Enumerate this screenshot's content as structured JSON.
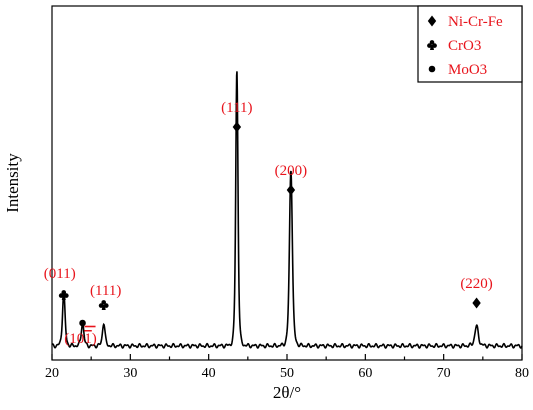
{
  "chart_data": {
    "type": "line",
    "xlabel": "2θ/°",
    "ylabel": "Intensity",
    "xlim": [
      20,
      80
    ],
    "xticks": [
      20,
      30,
      40,
      50,
      60,
      70,
      80
    ],
    "xtick_labels": [
      "20",
      "30",
      "40",
      "50",
      "60",
      "70",
      "80"
    ],
    "ylim": [
      0,
      100
    ],
    "grid": false,
    "legend_position": "top-right",
    "series": [
      {
        "color": "#000000",
        "baseline": 4,
        "peaks": [
          {
            "x": 21.5,
            "y": 15,
            "w": 0.25
          },
          {
            "x": 23.9,
            "y": 6.5,
            "w": 0.25
          },
          {
            "x": 26.6,
            "y": 6.5,
            "w": 0.25
          },
          {
            "x": 43.6,
            "y": 78,
            "w": 0.22
          },
          {
            "x": 50.5,
            "y": 50,
            "w": 0.28
          },
          {
            "x": 74.2,
            "y": 5.5,
            "w": 0.35
          }
        ]
      }
    ],
    "legend": [
      {
        "marker": "diamond",
        "label": "Ni-Cr-Fe"
      },
      {
        "marker": "club",
        "label": "CrO3"
      },
      {
        "marker": "circle",
        "label": "MoO3"
      }
    ],
    "annotations": [
      {
        "x": 43.6,
        "marker": "diamond",
        "label": "(111)"
      },
      {
        "x": 50.5,
        "marker": "diamond",
        "label": "(200)"
      },
      {
        "x": 74.2,
        "marker": "diamond",
        "label": "(220)"
      },
      {
        "x": 21.5,
        "marker": "club",
        "label": "(011)"
      },
      {
        "x": 26.6,
        "marker": "club",
        "label": "(111)"
      },
      {
        "x": 23.9,
        "marker": "circle",
        "label": "(10",
        "label_overbar": "1",
        "label_end": ")"
      }
    ],
    "label_color": "#e8141c"
  }
}
